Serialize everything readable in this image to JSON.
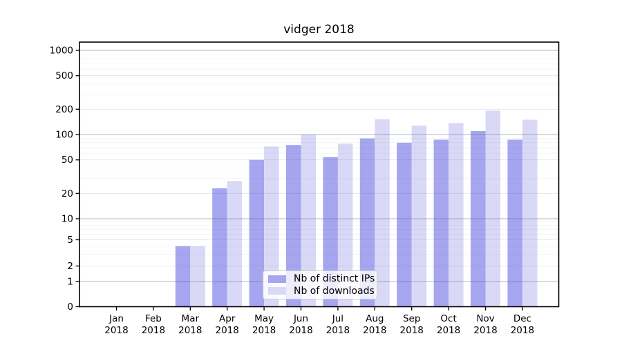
{
  "chart_data": {
    "type": "bar",
    "title": "vidger 2018",
    "categories": [
      "Jan 2018",
      "Feb 2018",
      "Mar 2018",
      "Apr 2018",
      "May 2018",
      "Jun 2018",
      "Jul 2018",
      "Aug 2018",
      "Sep 2018",
      "Oct 2018",
      "Nov 2018",
      "Dec 2018"
    ],
    "series": [
      {
        "name": "Nb of distinct IPs",
        "color": "#a5a5f0",
        "values": [
          0,
          0,
          4,
          23,
          50,
          75,
          54,
          90,
          80,
          87,
          110,
          87
        ]
      },
      {
        "name": "Nb of downloads",
        "color": "#d9d9f7",
        "values": [
          0,
          0,
          4,
          28,
          72,
          100,
          78,
          152,
          128,
          137,
          192,
          150
        ]
      }
    ],
    "xlabel": "",
    "ylabel": "",
    "yscale": "symlog",
    "y_ticks": [
      0,
      1,
      2,
      5,
      10,
      20,
      50,
      100,
      200,
      500,
      1000
    ],
    "ylim": [
      0,
      1250
    ],
    "grid": true,
    "grid_on_top": true,
    "legend_position": "lower center",
    "axis_color": "#000000",
    "major_grid_color": "#a0a0a0",
    "minor_grid_color": "#ededed"
  }
}
